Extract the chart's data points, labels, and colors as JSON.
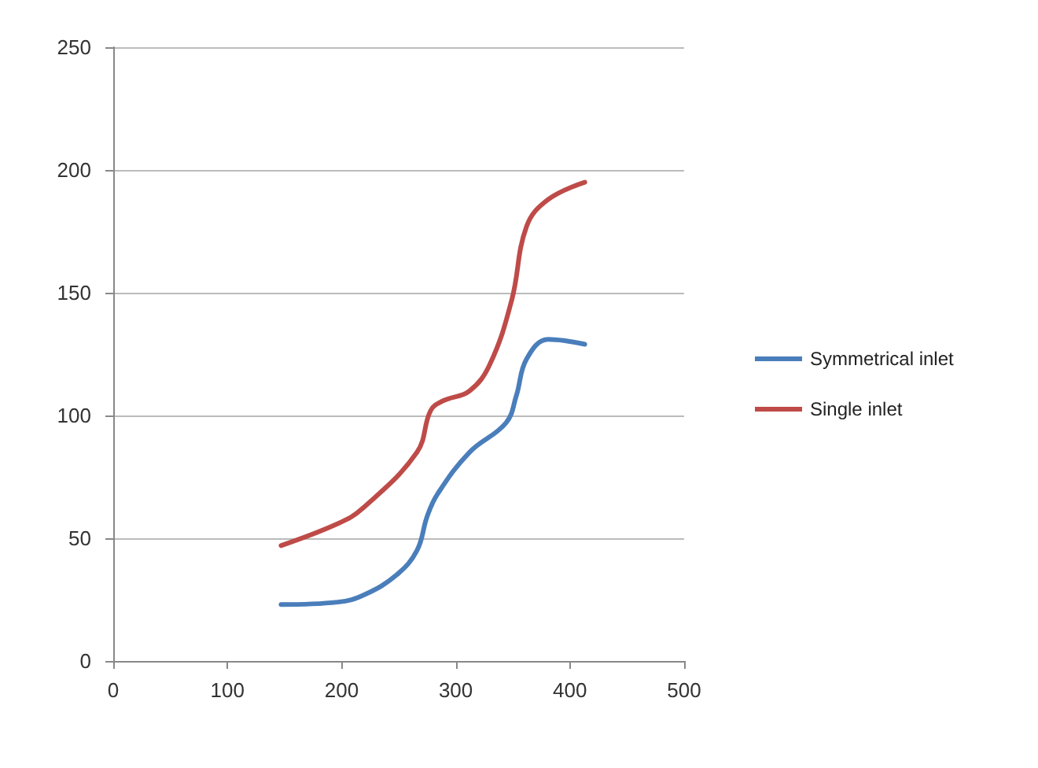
{
  "chart_data": {
    "type": "line",
    "xlim": [
      0,
      500
    ],
    "xticks": [
      0,
      100,
      200,
      300,
      400,
      500
    ],
    "ylim": [
      0,
      250
    ],
    "yticks": [
      0,
      50,
      100,
      150,
      200,
      250
    ],
    "grid": "y",
    "legend": "right",
    "marker": "none",
    "line_style": "solid",
    "series": [
      {
        "name": "Symmetrical inlet",
        "color": "#4a7ebb",
        "x": [
          147,
          197,
          220,
          248,
          266,
          275,
          284,
          312,
          344,
          353,
          362,
          381,
          413
        ],
        "values": [
          23,
          24,
          27,
          35,
          45,
          59,
          68,
          85,
          97,
          108,
          123,
          131,
          129
        ]
      },
      {
        "name": "Single inlet",
        "color": "#be4b48",
        "x": [
          147,
          197,
          218,
          266,
          278,
          289,
          312,
          330,
          349,
          362,
          381,
          413
        ],
        "values": [
          47,
          56,
          62,
          85,
          102,
          106,
          110,
          121,
          147,
          177,
          188,
          195
        ]
      }
    ]
  }
}
